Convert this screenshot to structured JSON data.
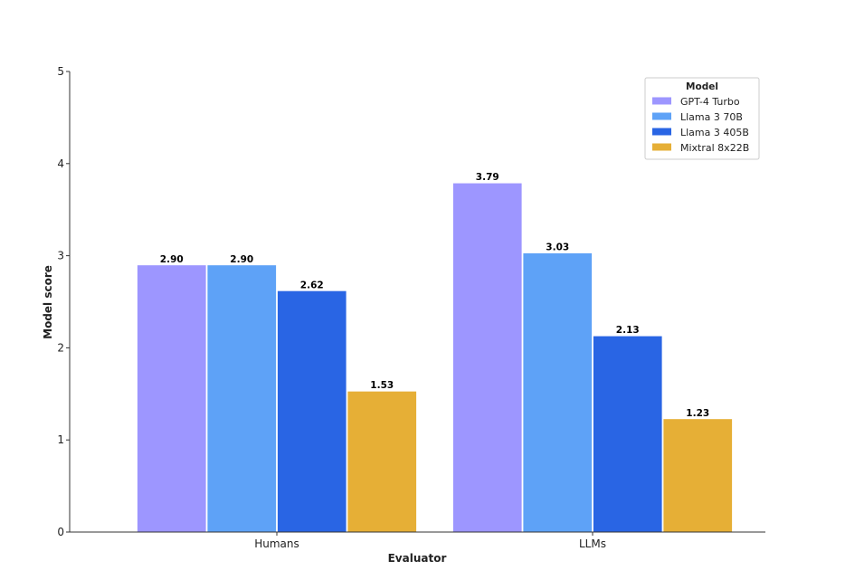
{
  "chart_data": {
    "type": "bar",
    "title": "",
    "xlabel": "Evaluator",
    "ylabel": "Model score",
    "categories": [
      "Humans",
      "LLMs"
    ],
    "ylim": [
      0,
      5
    ],
    "yticks": [
      "0",
      "1",
      "2",
      "3",
      "4",
      "5"
    ],
    "grid": false,
    "legend": {
      "title": "Model",
      "position": "top-right"
    },
    "series": [
      {
        "name": "GPT-4 Turbo",
        "color": "#9d96ff",
        "values": [
          2.9,
          3.79
        ],
        "labels": [
          "2.90",
          "3.79"
        ]
      },
      {
        "name": "Llama 3 70B",
        "color": "#5ea2f7",
        "values": [
          2.9,
          3.03
        ],
        "labels": [
          "2.90",
          "3.03"
        ]
      },
      {
        "name": "Llama 3 405B",
        "color": "#2965e4",
        "values": [
          2.62,
          2.13
        ],
        "labels": [
          "2.62",
          "2.13"
        ]
      },
      {
        "name": "Mixtral 8x22B",
        "color": "#e6af36",
        "values": [
          1.53,
          1.23
        ],
        "labels": [
          "1.53",
          "1.23"
        ]
      }
    ]
  }
}
